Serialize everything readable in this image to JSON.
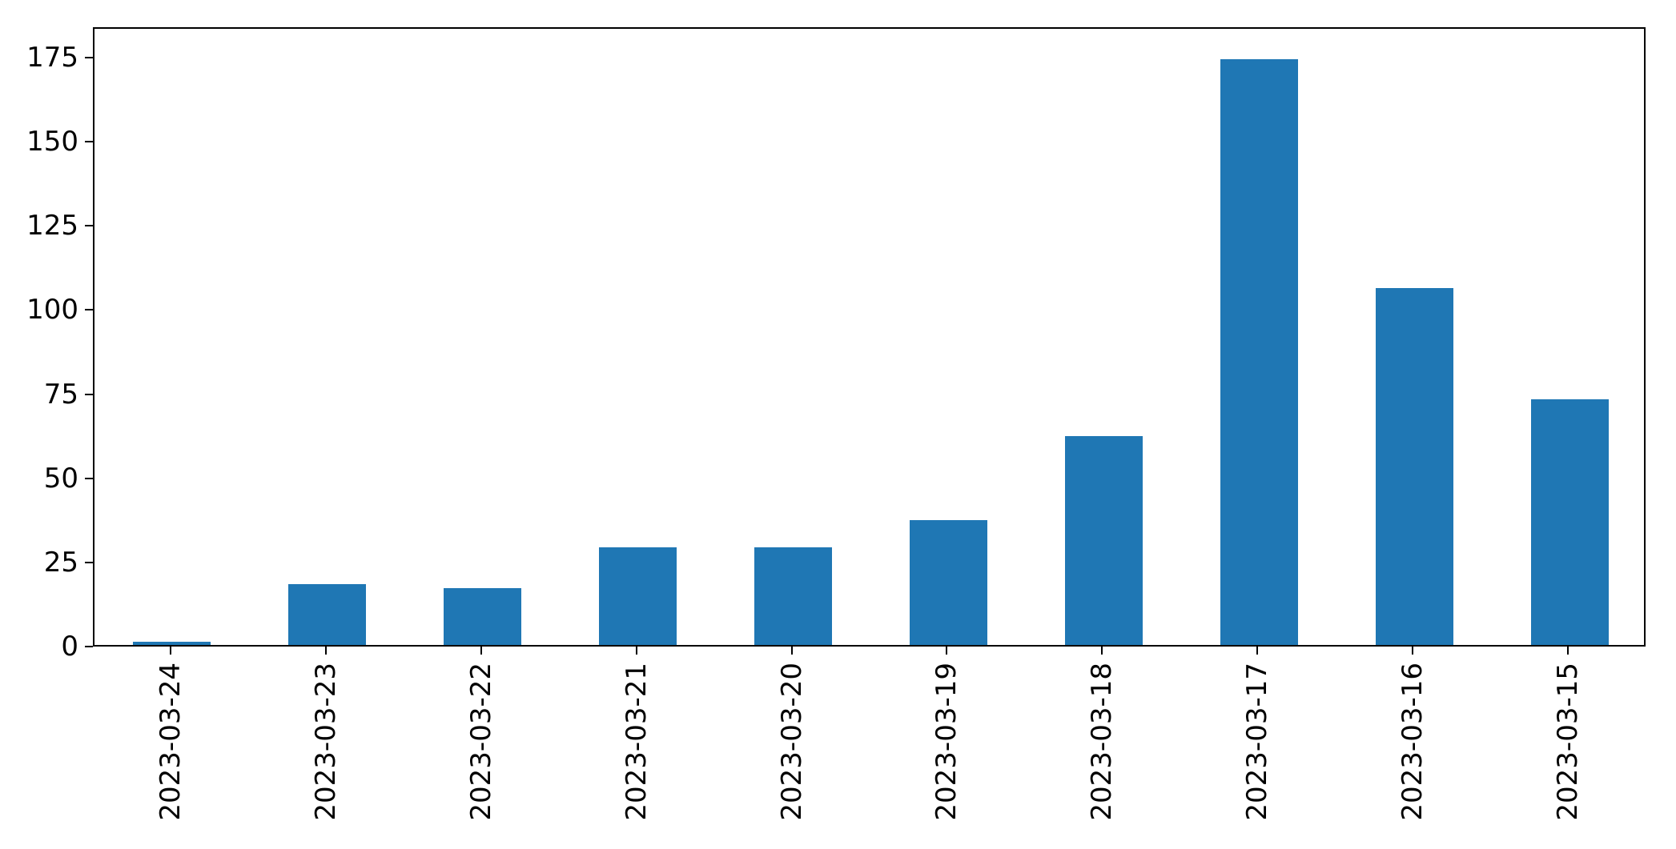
{
  "chart_data": {
    "type": "bar",
    "categories": [
      "2023-03-24",
      "2023-03-23",
      "2023-03-22",
      "2023-03-21",
      "2023-03-20",
      "2023-03-19",
      "2023-03-18",
      "2023-03-17",
      "2023-03-16",
      "2023-03-15"
    ],
    "values": [
      1,
      18,
      17,
      29,
      29,
      37,
      62,
      174,
      106,
      73
    ],
    "title": "",
    "xlabel": "",
    "ylabel": "",
    "ylim": [
      0,
      184
    ],
    "yticks": [
      0,
      25,
      50,
      75,
      100,
      125,
      150,
      175
    ],
    "x_tick_rotation": 90,
    "grid": false,
    "legend_position": "none",
    "bar_color": "#1f77b4",
    "bar_width_fraction": 0.5,
    "axis_color": "#000000",
    "background_color": "#ffffff"
  }
}
